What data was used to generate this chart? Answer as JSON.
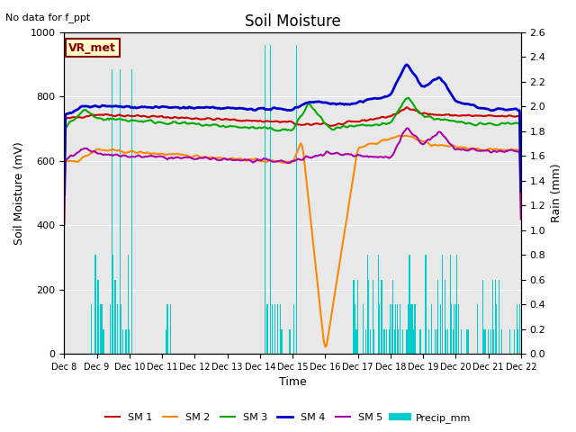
{
  "title": "Soil Moisture",
  "subtitle": "No data for f_ppt",
  "ylabel_left": "Soil Moisture (mV)",
  "ylabel_right": "Rain (mm)",
  "xlabel": "Time",
  "ylim_left": [
    0,
    1000
  ],
  "ylim_right": [
    0.0,
    2.6
  ],
  "yticks_right": [
    0.0,
    0.2,
    0.4,
    0.6,
    0.8,
    1.0,
    1.2,
    1.4,
    1.6,
    1.8,
    2.0,
    2.2,
    2.4,
    2.6
  ],
  "vr_met_label": "VR_met",
  "background_color": "#e8e8e8",
  "legend_entries": [
    "SM 1",
    "SM 2",
    "SM 3",
    "SM 4",
    "SM 5",
    "Precip_mm"
  ],
  "legend_colors": [
    "#cc0000",
    "#ff8800",
    "#00aa00",
    "#0000cc",
    "#aa00aa",
    "#00cccc"
  ],
  "line_widths": [
    1.5,
    1.5,
    1.5,
    2.0,
    1.5,
    1.0
  ],
  "x_tick_labels": [
    "Dec 8",
    "Dec 9",
    "Dec 10",
    "Dec 11",
    "Dec 12",
    "Dec 13",
    "Dec 14",
    "Dec 15",
    "Dec 16",
    "Dec 17",
    "Dec 18",
    "Dec 19",
    "Dec 20",
    "Dec 21",
    "Dec 22"
  ],
  "x_tick_positions": [
    0,
    24,
    48,
    72,
    96,
    120,
    144,
    168,
    192,
    216,
    240,
    264,
    288,
    312,
    336
  ]
}
